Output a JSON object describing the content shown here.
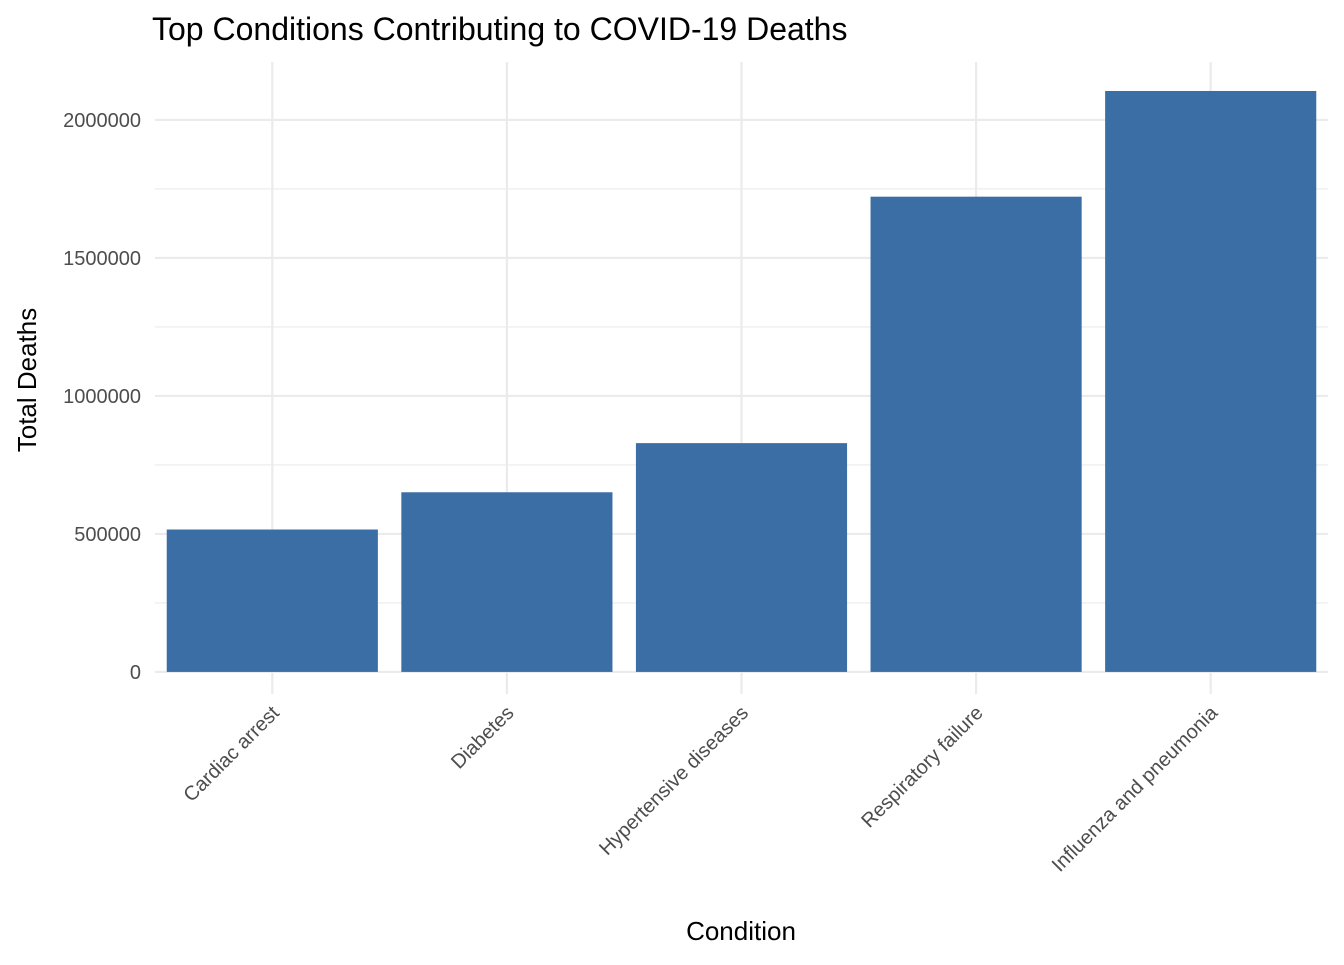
{
  "chart_data": {
    "type": "bar",
    "title": "Top Conditions Contributing to COVID-19 Deaths",
    "xlabel": "Condition",
    "ylabel": "Total Deaths",
    "categories": [
      "Cardiac arrest",
      "Diabetes",
      "Hypertensive diseases",
      "Respiratory failure",
      "Influenza and pneumonia"
    ],
    "values": [
      516000,
      651000,
      829000,
      1722000,
      2105000
    ],
    "ylim": [
      -80000,
      2210000
    ],
    "yticks": [
      0,
      500000,
      1000000,
      1500000,
      2000000
    ],
    "ytick_labels": [
      "0",
      "500000",
      "1000000",
      "1500000",
      "2000000"
    ],
    "grid": true,
    "legend": "none",
    "bar_color": "#3b6ea5",
    "grid_color": "#ebebeb"
  }
}
